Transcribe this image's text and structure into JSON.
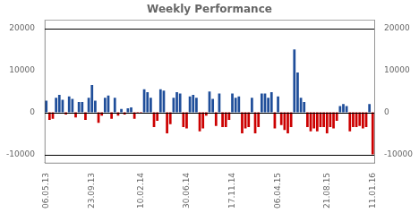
{
  "chart_data": {
    "type": "bar",
    "title": "Weekly Performance",
    "categories": [
      "06.05.13",
      null,
      null,
      null,
      null,
      null,
      null,
      null,
      null,
      null,
      null,
      null,
      null,
      null,
      "23.09.13",
      null,
      null,
      null,
      null,
      null,
      null,
      null,
      null,
      null,
      null,
      null,
      null,
      null,
      null,
      "10.02.14",
      null,
      null,
      null,
      null,
      null,
      null,
      null,
      null,
      null,
      null,
      null,
      null,
      null,
      "30.06.14",
      null,
      null,
      null,
      null,
      null,
      null,
      null,
      null,
      null,
      null,
      null,
      null,
      null,
      "17.11.14",
      null,
      null,
      null,
      null,
      null,
      null,
      null,
      null,
      null,
      null,
      null,
      null,
      null,
      "06.04.15",
      null,
      null,
      null,
      null,
      null,
      null,
      null,
      null,
      null,
      null,
      null,
      null,
      null,
      null,
      "21.08.15",
      null,
      null,
      null,
      null,
      null,
      null,
      null,
      null,
      null,
      null,
      null,
      null,
      null,
      "11.01.16"
    ],
    "values": [
      2800,
      -1800,
      -1500,
      3500,
      4200,
      3000,
      -500,
      3800,
      3200,
      -1200,
      2500,
      2500,
      -1800,
      3500,
      6500,
      2800,
      -2500,
      -800,
      3500,
      4000,
      -1500,
      3500,
      -800,
      800,
      -500,
      1000,
      1200,
      -1500,
      -200,
      -200,
      5500,
      4800,
      3500,
      -3500,
      -2000,
      5500,
      5200,
      -5000,
      -2800,
      3500,
      4800,
      4500,
      -3500,
      -3800,
      3800,
      4200,
      3500,
      -4500,
      -3800,
      -800,
      5000,
      3200,
      -3200,
      4500,
      -3500,
      -3500,
      -1800,
      4500,
      3500,
      3800,
      -5000,
      -3800,
      -3500,
      3500,
      -5000,
      -3500,
      4500,
      4500,
      3500,
      4800,
      -3800,
      3800,
      -3000,
      -4200,
      -5000,
      -3500,
      15000,
      9500,
      3500,
      2500,
      -3500,
      -4500,
      -3800,
      -4500,
      -3500,
      -3500,
      -5000,
      -3500,
      -3800,
      -2000,
      1500,
      2000,
      1500,
      -4500,
      -3500,
      -3500,
      -3200,
      -3800,
      -3500,
      2000,
      -10000
    ],
    "colors": [
      "#1f4e9a",
      "#cc0000",
      "#cc0000",
      "#1f4e9a",
      "#1f4e9a",
      "#1f4e9a",
      "#cc0000",
      "#1f4e9a",
      "#1f4e9a",
      "#cc0000",
      "#1f4e9a",
      "#1f4e9a",
      "#cc0000",
      "#1f4e9a",
      "#1f4e9a",
      "#1f4e9a",
      "#cc0000",
      "#cc0000",
      "#1f4e9a",
      "#1f4e9a",
      "#cc0000",
      "#1f4e9a",
      "#cc0000",
      "#1f4e9a",
      "#cc0000",
      "#1f4e9a",
      "#1f4e9a",
      "#cc0000",
      "#cc0000",
      "#cc0000",
      "#1f4e9a",
      "#1f4e9a",
      "#1f4e9a",
      "#cc0000",
      "#cc0000",
      "#1f4e9a",
      "#1f4e9a",
      "#cc0000",
      "#cc0000",
      "#1f4e9a",
      "#1f4e9a",
      "#1f4e9a",
      "#cc0000",
      "#cc0000",
      "#1f4e9a",
      "#1f4e9a",
      "#1f4e9a",
      "#cc0000",
      "#cc0000",
      "#cc0000",
      "#1f4e9a",
      "#1f4e9a",
      "#cc0000",
      "#1f4e9a",
      "#cc0000",
      "#cc0000",
      "#cc0000",
      "#1f4e9a",
      "#1f4e9a",
      "#1f4e9a",
      "#cc0000",
      "#cc0000",
      "#cc0000",
      "#1f4e9a",
      "#cc0000",
      "#cc0000",
      "#1f4e9a",
      "#1f4e9a",
      "#1f4e9a",
      "#1f4e9a",
      "#cc0000",
      "#1f4e9a",
      "#cc0000",
      "#cc0000",
      "#cc0000",
      "#cc0000",
      "#1f4e9a",
      "#1f4e9a",
      "#1f4e9a",
      "#1f4e9a",
      "#cc0000",
      "#cc0000",
      "#cc0000",
      "#cc0000",
      "#cc0000",
      "#cc0000",
      "#cc0000",
      "#cc0000",
      "#cc0000",
      "#cc0000",
      "#1f4e9a",
      "#1f4e9a",
      "#1f4e9a",
      "#cc0000",
      "#cc0000",
      "#cc0000",
      "#cc0000",
      "#cc0000",
      "#cc0000",
      "#1f4e9a",
      "#cc0000"
    ],
    "ylim": [
      -12000,
      22000
    ],
    "yticks": [
      -10000,
      0,
      10000,
      20000
    ],
    "y2lim": [
      -12000,
      22000
    ],
    "y2ticks": [
      -10000,
      0,
      10000,
      20000
    ],
    "hlines": [
      20000,
      0,
      -10000
    ],
    "grid": false
  }
}
